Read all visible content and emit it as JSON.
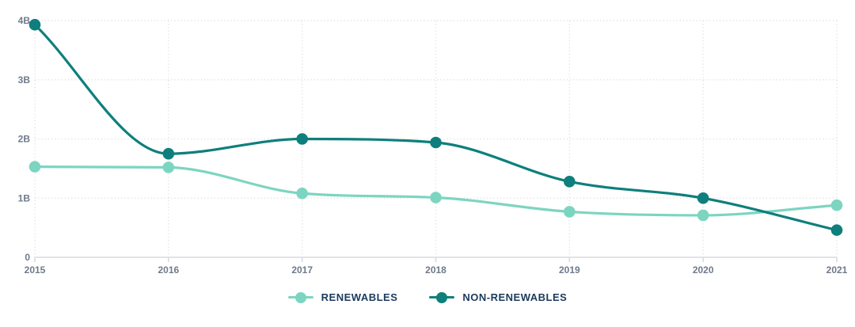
{
  "chart_data": {
    "type": "line",
    "x": [
      "2015",
      "2016",
      "2017",
      "2018",
      "2019",
      "2020",
      "2021"
    ],
    "series": [
      {
        "name": "RENEWABLES",
        "color": "#7cd5c1",
        "values": [
          1.53,
          1.52,
          1.08,
          1.01,
          0.77,
          0.71,
          0.88
        ]
      },
      {
        "name": "NON-RENEWABLES",
        "color": "#0e7f7c",
        "values": [
          3.93,
          1.75,
          2.0,
          1.94,
          1.28,
          1.0,
          0.46
        ]
      }
    ],
    "y_ticks": [
      {
        "value": 0,
        "label": "0"
      },
      {
        "value": 1,
        "label": "1B"
      },
      {
        "value": 2,
        "label": "2B"
      },
      {
        "value": 3,
        "label": "3B"
      },
      {
        "value": 4,
        "label": "4B"
      }
    ],
    "ylim": [
      0,
      4
    ],
    "title": "",
    "xlabel": "",
    "ylabel": "",
    "grid": "dotted horizontal and vertical",
    "curve": "smooth-monotone",
    "marker": "circle",
    "legend_position": "bottom-center"
  },
  "colors": {
    "background": "#ffffff",
    "gridline": "#dcdcdc",
    "axis_line": "#d8dce0",
    "tick_label": "#6e7a8a",
    "legend_text": "#1c3a5c",
    "renewables": "#7cd5c1",
    "non_renewables": "#0e7f7c"
  }
}
